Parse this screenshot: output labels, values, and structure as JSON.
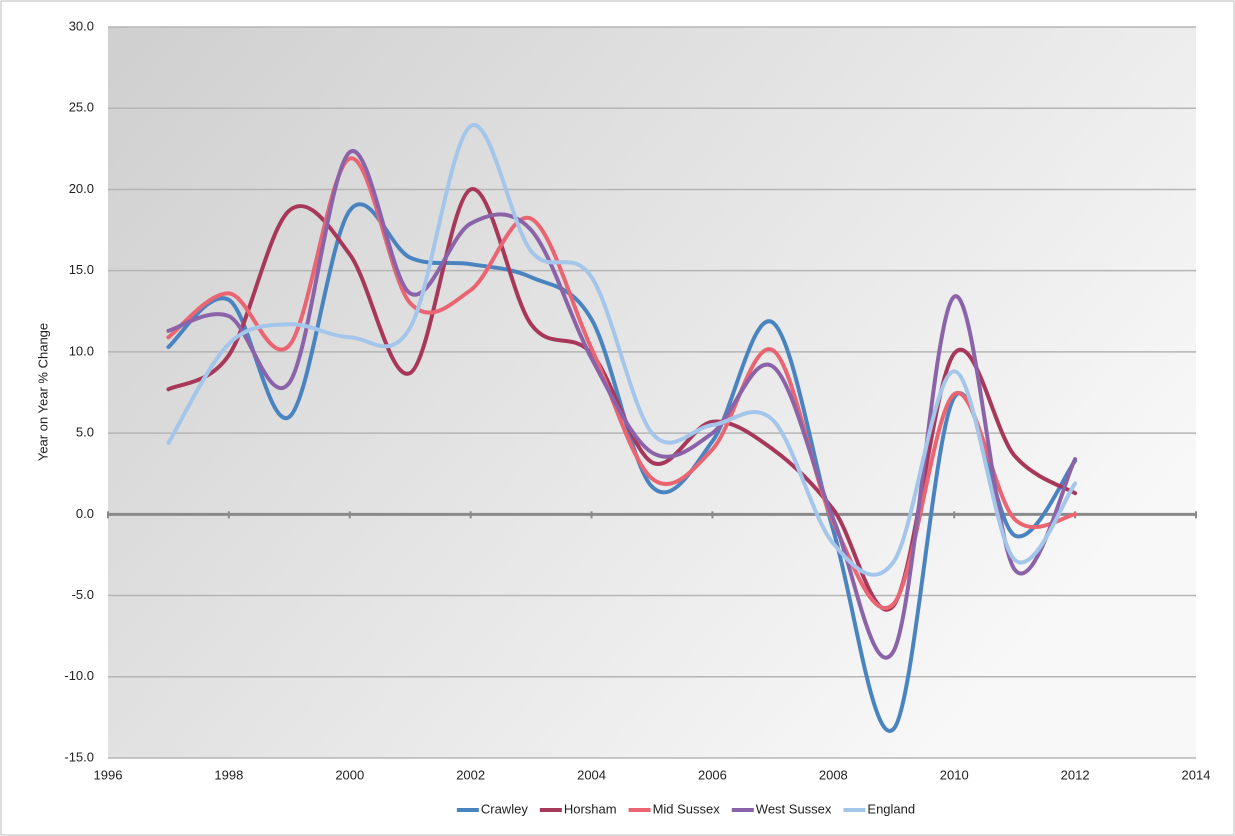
{
  "chart_data": {
    "type": "line",
    "y_label": "Year on Year % Change",
    "x": [
      1997,
      1998,
      1999,
      2000,
      2001,
      2002,
      2003,
      2004,
      2005,
      2006,
      2007,
      2008,
      2009,
      2010,
      2011,
      2012
    ],
    "series": [
      {
        "name": "Crawley",
        "color": "#4a84c0",
        "values": [
          10.3,
          13.2,
          6.0,
          18.7,
          15.8,
          15.4,
          14.6,
          12.0,
          1.7,
          4.5,
          11.8,
          -1.0,
          -13.2,
          7.2,
          -1.3,
          3.3
        ]
      },
      {
        "name": "Horsham",
        "color": "#a8385a",
        "values": [
          7.7,
          9.8,
          18.7,
          16.0,
          8.7,
          20.0,
          11.7,
          9.9,
          3.2,
          5.7,
          4.0,
          0.3,
          -5.6,
          9.9,
          3.6,
          1.3
        ]
      },
      {
        "name": "Mid Sussex",
        "color": "#ea6472",
        "values": [
          10.9,
          13.6,
          10.4,
          21.9,
          13.0,
          13.8,
          18.2,
          10.2,
          2.2,
          4.0,
          10.1,
          -0.5,
          -5.5,
          7.4,
          -0.3,
          0.0
        ]
      },
      {
        "name": "West Sussex",
        "color": "#8a63a8",
        "values": [
          11.3,
          12.2,
          8.1,
          22.3,
          13.6,
          17.9,
          17.5,
          9.6,
          3.8,
          5.0,
          9.1,
          -0.3,
          -8.4,
          13.4,
          -3.4,
          3.4
        ]
      },
      {
        "name": "England",
        "color": "#a4c6ea",
        "values": [
          4.4,
          10.5,
          11.7,
          10.9,
          11.5,
          23.9,
          16.2,
          14.6,
          5.0,
          5.5,
          5.8,
          -1.8,
          -2.9,
          8.8,
          -2.8,
          1.9
        ]
      }
    ],
    "xlim": [
      1996,
      2014
    ],
    "xticks": [
      1996,
      1998,
      2000,
      2002,
      2004,
      2006,
      2008,
      2010,
      2012,
      2014
    ],
    "ylim": [
      -15,
      30
    ],
    "yticks": [
      {
        "value": -15,
        "label": "-15.0"
      },
      {
        "value": -10,
        "label": "-10.0"
      },
      {
        "value": -5,
        "label": "-5.0"
      },
      {
        "value": 0,
        "label": "0.0"
      },
      {
        "value": 5,
        "label": "5.0"
      },
      {
        "value": 10,
        "label": "10.0"
      },
      {
        "value": 15,
        "label": "15.0"
      },
      {
        "value": 20,
        "label": "20.0"
      },
      {
        "value": 25,
        "label": "25.0"
      },
      {
        "value": 30,
        "label": "30.0"
      }
    ],
    "grid": true,
    "legend": "bottom",
    "smooth": true
  }
}
